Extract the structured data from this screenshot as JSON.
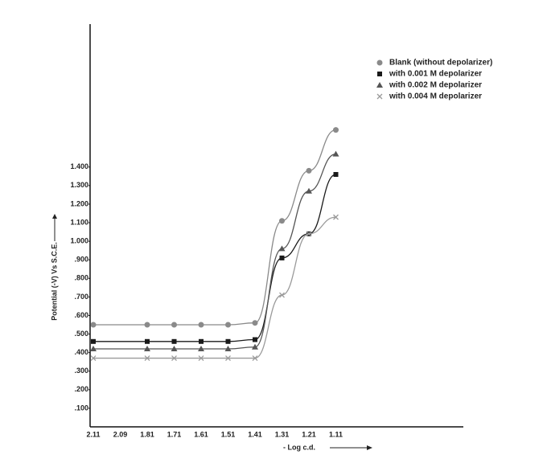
{
  "chart_data": {
    "type": "line",
    "xlabel": "- Log c.d.",
    "ylabel": "Potential (-V) Vs S.C.E.",
    "categories": [
      "2.11",
      "2.09",
      "1.81",
      "1.71",
      "1.61",
      "1.51",
      "1.41",
      "1.31",
      "1.21",
      "1.11"
    ],
    "series": [
      {
        "name": "Blank (without depolarizer)",
        "color": "#8a8a8a",
        "marker": "circle",
        "values": [
          0.55,
          null,
          0.55,
          0.55,
          0.55,
          0.55,
          0.56,
          1.11,
          1.38,
          1.6
        ]
      },
      {
        "name": "with 0.001 M depolarizer",
        "color": "#1a1a1a",
        "marker": "square",
        "values": [
          0.46,
          null,
          0.46,
          0.46,
          0.46,
          0.46,
          0.47,
          0.91,
          1.04,
          1.36
        ]
      },
      {
        "name": "with 0.002 M depolarizer",
        "color": "#555555",
        "marker": "triangle",
        "values": [
          0.42,
          null,
          0.42,
          0.42,
          0.42,
          0.42,
          0.43,
          0.96,
          1.27,
          1.47
        ]
      },
      {
        "name": "with 0.004 M depolarizer",
        "color": "#9a9a9a",
        "marker": "x",
        "values": [
          0.37,
          null,
          0.37,
          0.37,
          0.37,
          0.37,
          0.37,
          0.71,
          1.04,
          1.13
        ]
      }
    ],
    "ylim": [
      0,
      2.17
    ],
    "yticks": [
      {
        "value": 0.1,
        "label": ".100"
      },
      {
        "value": 0.2,
        "label": ".200"
      },
      {
        "value": 0.3,
        "label": ".300"
      },
      {
        "value": 0.4,
        "label": ".400"
      },
      {
        "value": 0.5,
        "label": ".500"
      },
      {
        "value": 0.6,
        "label": ".600"
      },
      {
        "value": 0.7,
        "label": ".700"
      },
      {
        "value": 0.8,
        "label": ".800"
      },
      {
        "value": 0.9,
        "label": ".900"
      },
      {
        "value": 1.0,
        "label": "1.000"
      },
      {
        "value": 1.1,
        "label": "1.100"
      },
      {
        "value": 1.2,
        "label": "1.200"
      },
      {
        "value": 1.3,
        "label": "1.300"
      },
      {
        "value": 1.4,
        "label": "1.400"
      }
    ],
    "grid": false,
    "legend": "top-right"
  }
}
